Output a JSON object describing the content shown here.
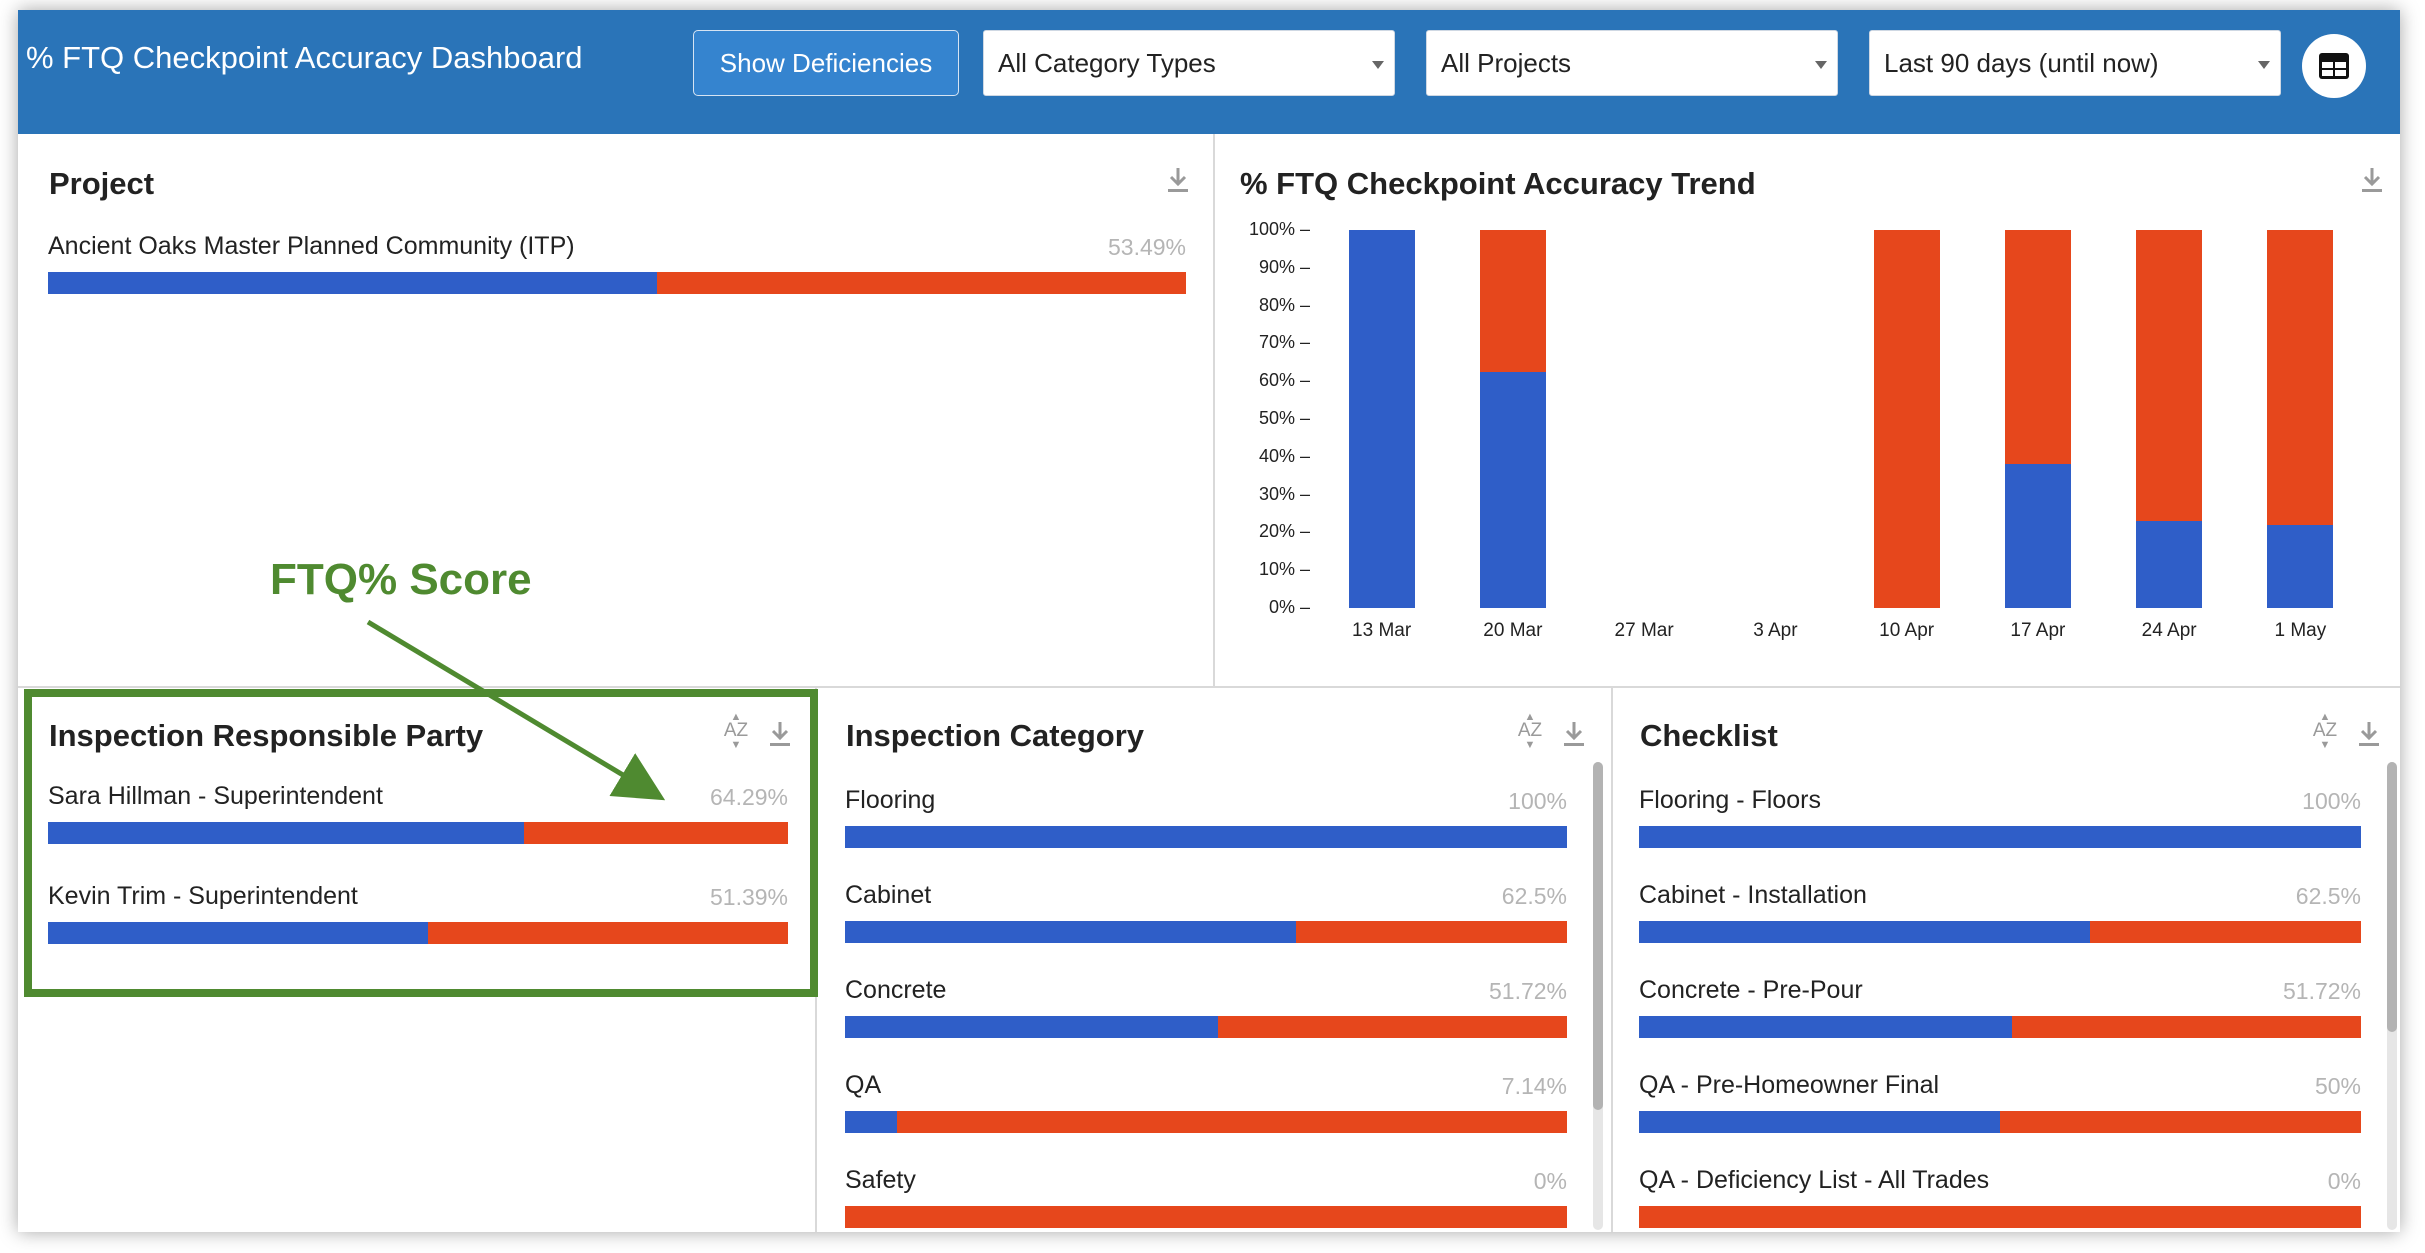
{
  "header": {
    "title": "% FTQ Checkpoint Accuracy Dashboard",
    "show_deficiencies": "Show Deficiencies",
    "category_filter": "All Category Types",
    "project_filter": "All Projects",
    "date_filter": "Last 90 days (until now)",
    "table_icon": "table-icon"
  },
  "project_panel": {
    "title": "Project",
    "rows": [
      {
        "label": "Ancient Oaks Master Planned Community (ITP)",
        "pct": "53.49%",
        "value": 0.5349
      }
    ]
  },
  "trend_panel": {
    "title": "% FTQ Checkpoint Accuracy Trend",
    "chart_data": {
      "type": "bar",
      "stacked": true,
      "categories": [
        "13 Mar",
        "20 Mar",
        "27 Mar",
        "3 Apr",
        "10 Apr",
        "17 Apr",
        "24 Apr",
        "1 May"
      ],
      "series": [
        {
          "values": [
            100,
            62.5,
            0,
            0,
            0,
            38,
            23,
            22
          ],
          "color": "#2f5ec8"
        },
        {
          "values": [
            0,
            37.5,
            0,
            0,
            100,
            62,
            77,
            78
          ],
          "color": "#e6471c"
        }
      ],
      "y_ticks": [
        "0% –",
        "10% –",
        "20% –",
        "30% –",
        "40% –",
        "50% –",
        "60% –",
        "70% –",
        "80% –",
        "90% –",
        "100% –"
      ],
      "ylim": [
        0,
        100
      ],
      "grid": false
    }
  },
  "responsible_panel": {
    "title": "Inspection Responsible Party",
    "rows": [
      {
        "label": "Sara Hillman - Superintendent",
        "pct": "64.29%",
        "value": 0.6429
      },
      {
        "label": "Kevin Trim - Superintendent",
        "pct": "51.39%",
        "value": 0.5139
      }
    ]
  },
  "category_panel": {
    "title": "Inspection Category",
    "rows": [
      {
        "label": "Flooring",
        "pct": "100%",
        "value": 1.0
      },
      {
        "label": "Cabinet",
        "pct": "62.5%",
        "value": 0.625
      },
      {
        "label": "Concrete",
        "pct": "51.72%",
        "value": 0.5172
      },
      {
        "label": "QA",
        "pct": "7.14%",
        "value": 0.0714
      },
      {
        "label": "Safety",
        "pct": "0%",
        "value": 0.0
      }
    ]
  },
  "checklist_panel": {
    "title": "Checklist",
    "rows": [
      {
        "label": "Flooring - Floors",
        "pct": "100%",
        "value": 1.0
      },
      {
        "label": "Cabinet - Installation",
        "pct": "62.5%",
        "value": 0.625
      },
      {
        "label": "Concrete - Pre-Pour",
        "pct": "51.72%",
        "value": 0.5172
      },
      {
        "label": "QA - Pre-Homeowner Final",
        "pct": "50%",
        "value": 0.5
      },
      {
        "label": "QA - Deficiency List - All Trades",
        "pct": "0%",
        "value": 0.0
      }
    ]
  },
  "sort_label": "AZ",
  "annotation": {
    "text": "FTQ% Score"
  },
  "colors": {
    "header": "#2a74b8",
    "pass": "#2f5ec8",
    "fail": "#e6471c",
    "annotation": "#4f8a30"
  }
}
